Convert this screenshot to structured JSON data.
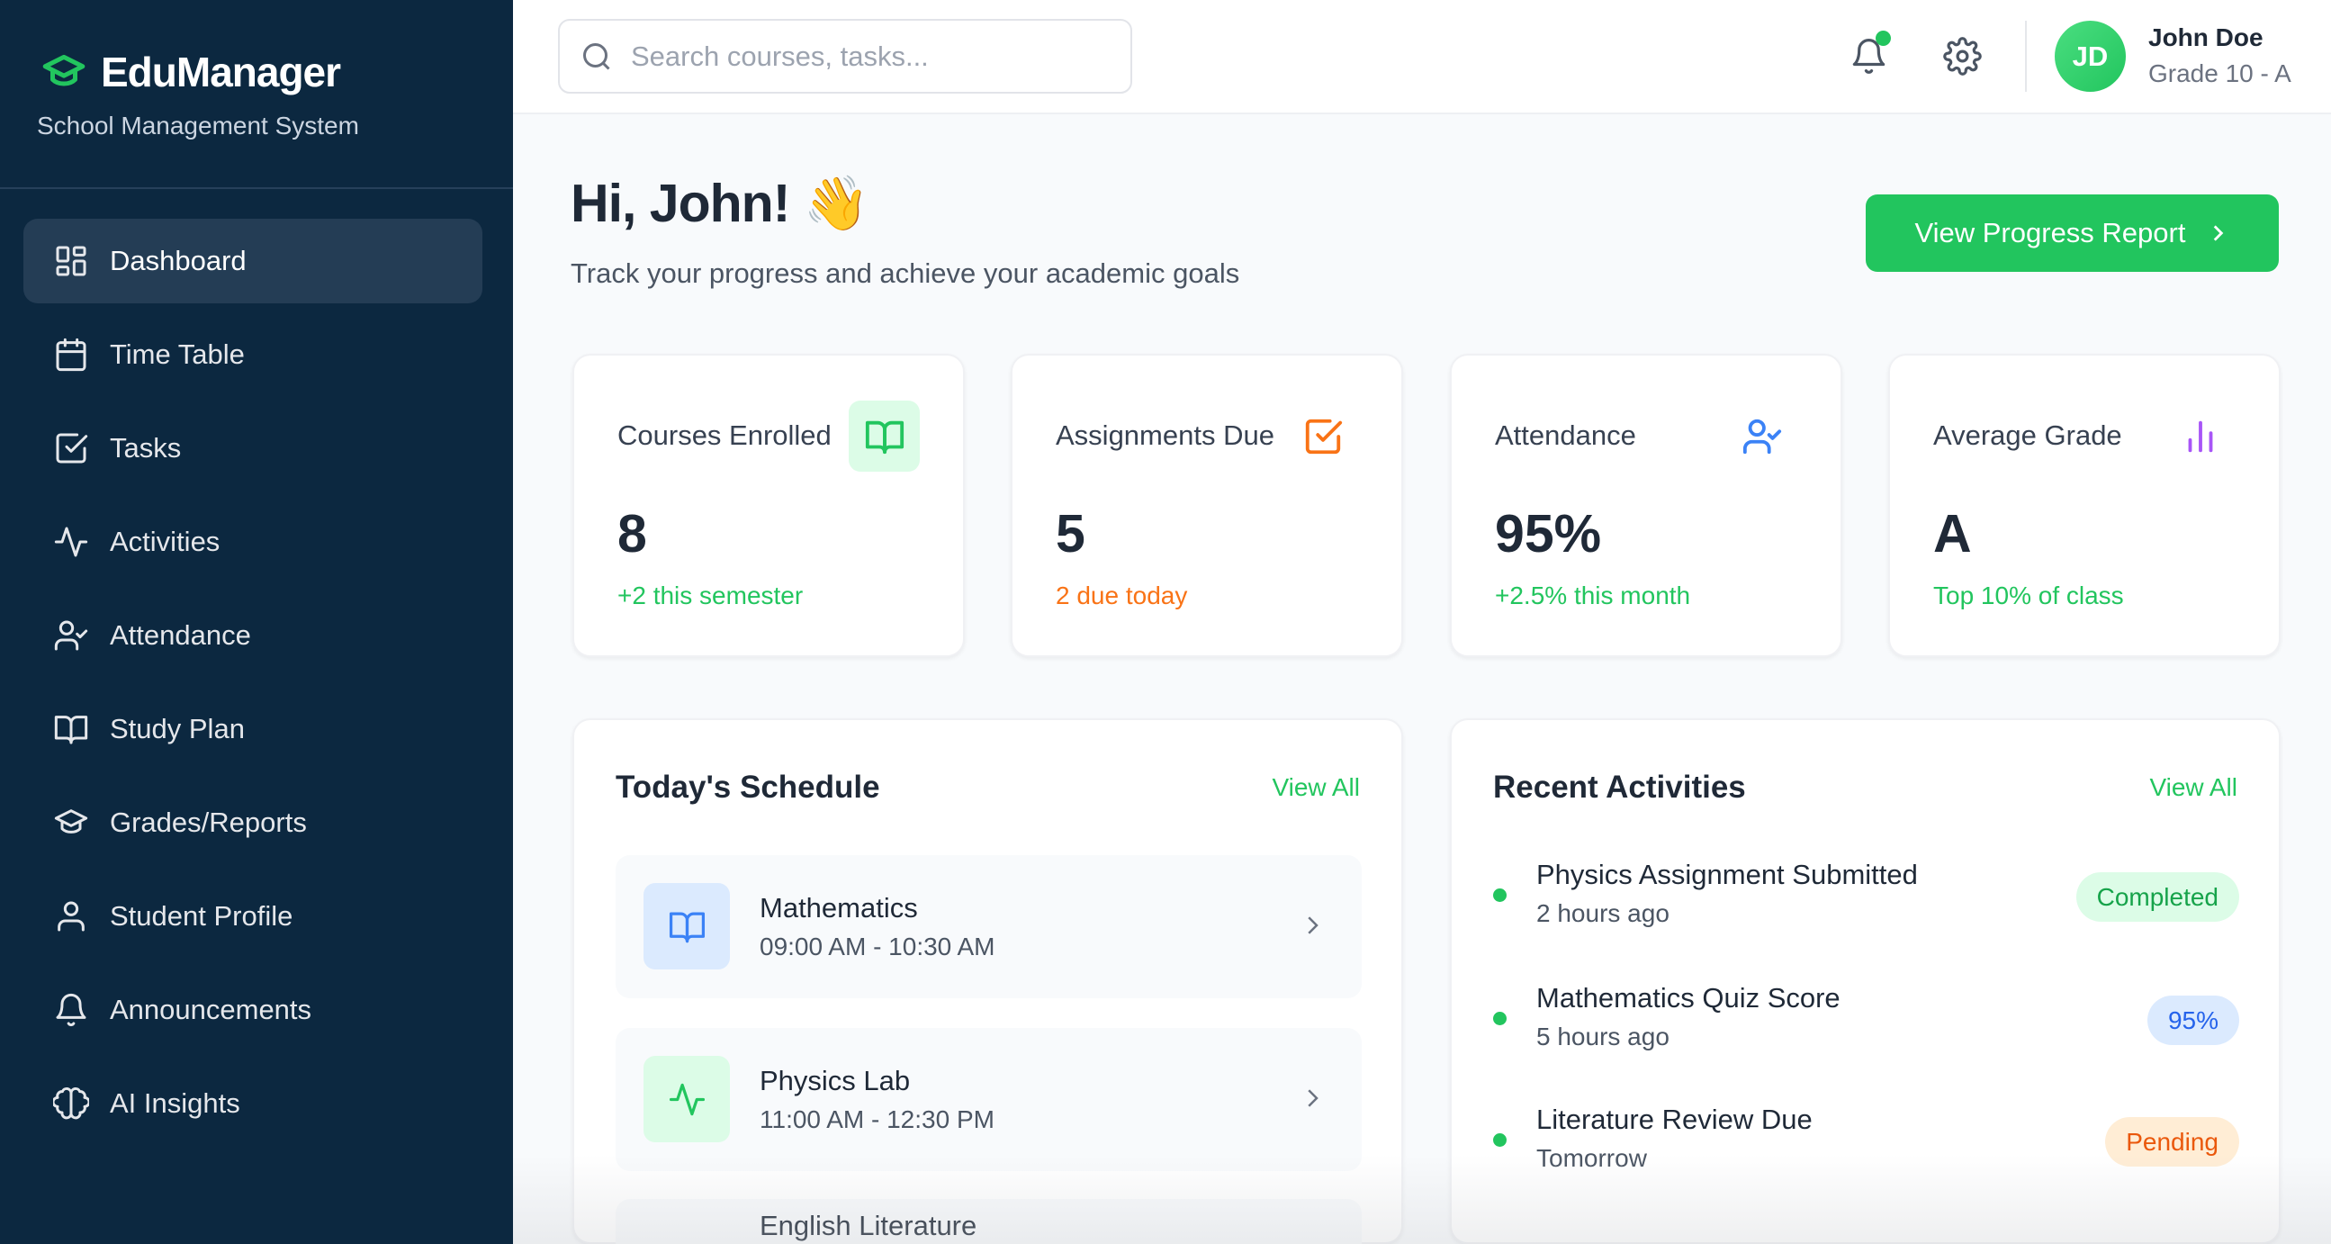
{
  "brand": {
    "name": "EduManager",
    "subtitle": "School Management System",
    "accent": "#22c55e"
  },
  "sidebar": {
    "items": [
      {
        "label": "Dashboard",
        "icon": "dashboard-grid-icon",
        "active": true
      },
      {
        "label": "Time Table",
        "icon": "calendar-icon"
      },
      {
        "label": "Tasks",
        "icon": "checkbox-icon"
      },
      {
        "label": "Activities",
        "icon": "activity-icon"
      },
      {
        "label": "Attendance",
        "icon": "user-check-icon"
      },
      {
        "label": "Study Plan",
        "icon": "book-open-icon"
      },
      {
        "label": "Grades/Reports",
        "icon": "graduation-cap-icon"
      },
      {
        "label": "Student Profile",
        "icon": "user-icon"
      },
      {
        "label": "Announcements",
        "icon": "bell-icon"
      },
      {
        "label": "AI Insights",
        "icon": "brain-icon"
      }
    ]
  },
  "header": {
    "search_placeholder": "Search courses, tasks...",
    "user": {
      "initials": "JD",
      "name": "John Doe",
      "grade": "Grade 10 - A"
    }
  },
  "main": {
    "greeting": "Hi, John! 👋",
    "subtitle": "Track your progress and achieve your academic goals",
    "cta_label": "View Progress Report",
    "stats": [
      {
        "label": "Courses Enrolled",
        "value": "8",
        "sub": "+2 this semester",
        "color": "#22c55e"
      },
      {
        "label": "Assignments Due",
        "value": "5",
        "sub": "2 due today",
        "color": "#f97316"
      },
      {
        "label": "Attendance",
        "value": "95%",
        "sub": "+2.5% this month",
        "color": "#22c55e"
      },
      {
        "label": "Average Grade",
        "value": "A",
        "sub": "Top 10% of class",
        "color": "#22c55e"
      }
    ],
    "schedule": {
      "title": "Today's Schedule",
      "view_all": "View All",
      "items": [
        {
          "title": "Mathematics",
          "time": "09:00 AM - 10:30 AM"
        },
        {
          "title": "Physics Lab",
          "time": "11:00 AM - 12:30 PM"
        },
        {
          "title": "English Literature",
          "time": ""
        }
      ]
    },
    "activities": {
      "title": "Recent Activities",
      "view_all": "View All",
      "items": [
        {
          "title": "Physics Assignment Submitted",
          "time": "2 hours ago",
          "badge": "Completed"
        },
        {
          "title": "Mathematics Quiz Score",
          "time": "5 hours ago",
          "badge": "95%"
        },
        {
          "title": "Literature Review Due",
          "time": "Tomorrow",
          "badge": "Pending"
        }
      ]
    }
  }
}
